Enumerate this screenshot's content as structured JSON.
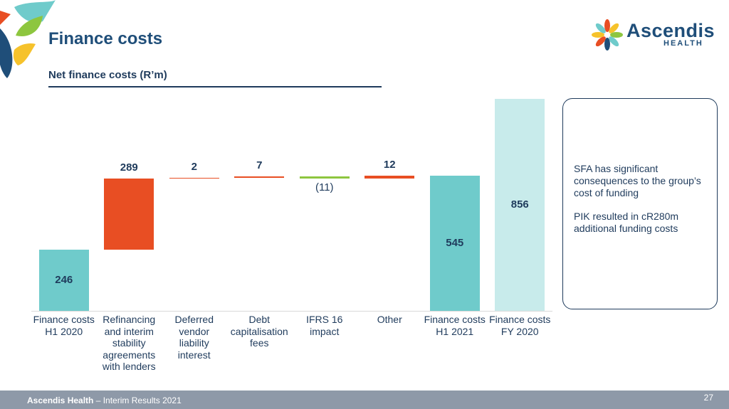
{
  "chart_data": {
    "type": "waterfall",
    "title": "Finance costs",
    "subtitle": "Net finance costs (R’m)",
    "categories": [
      "Finance costs H1 2020",
      "Refinancing and interim stability agreements with lenders",
      "Deferred vendor liability interest",
      "Debt capitalisation fees",
      "IFRS 16 impact",
      "Other",
      "Finance costs H1 2021",
      "Finance costs FY 2020"
    ],
    "values": [
      246,
      289,
      2,
      7,
      -11,
      12,
      545,
      856
    ],
    "value_labels": [
      "246",
      "289",
      "2",
      "7",
      "(11)",
      "12",
      "545",
      "856"
    ],
    "measure": [
      "absolute",
      "relative",
      "relative",
      "relative",
      "relative",
      "relative",
      "total",
      "absolute"
    ],
    "colors": [
      "#6fcbcb",
      "#e84e23",
      "#e84e23",
      "#e84e23",
      "#8dc63f",
      "#e84e23",
      "#6fcbcb",
      "#c8ebeb"
    ],
    "ylim": [
      0,
      856
    ]
  },
  "logo": {
    "name": "Ascendis",
    "tagline": "HEALTH"
  },
  "note": {
    "paragraphs": [
      "SFA has significant consequences to the group’s cost of funding",
      "PIK resulted in cR280m additional funding costs"
    ]
  },
  "footer": {
    "company": "Ascendis Health",
    "report": " – Interim Results 2021",
    "page": 27
  }
}
